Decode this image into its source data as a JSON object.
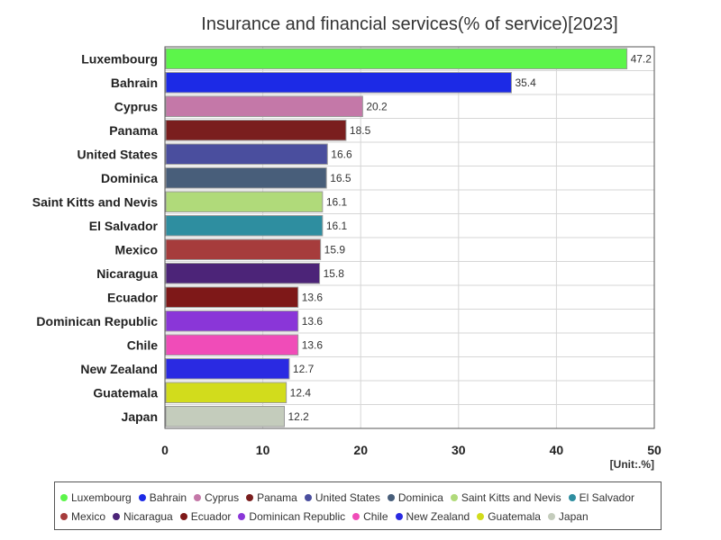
{
  "chart_data": {
    "type": "bar",
    "orientation": "horizontal",
    "title": "Insurance and financial services(% of service)[2023]",
    "unit_label": "[Unit:.%]",
    "xlim": [
      0,
      50
    ],
    "x_ticks": [
      "0",
      "10",
      "20",
      "30",
      "40",
      "50"
    ],
    "grid": true,
    "legend_position": "bottom",
    "categories": [
      "Luxembourg",
      "Bahrain",
      "Cyprus",
      "Panama",
      "United States",
      "Dominica",
      "Saint Kitts and Nevis",
      "El Salvador",
      "Mexico",
      "Nicaragua",
      "Ecuador",
      "Dominican Republic",
      "Chile",
      "New Zealand",
      "Guatemala",
      "Japan"
    ],
    "values": [
      47.2,
      35.4,
      20.2,
      18.5,
      16.6,
      16.5,
      16.1,
      16.1,
      15.9,
      15.8,
      13.6,
      13.6,
      13.6,
      12.7,
      12.4,
      12.2
    ],
    "value_labels": [
      "47.2",
      "35.4",
      "20.2",
      "18.5",
      "16.6",
      "16.5",
      "16.1",
      "16.1",
      "15.9",
      "15.8",
      "13.6",
      "13.6",
      "13.6",
      "12.7",
      "12.4",
      "12.2"
    ],
    "colors": [
      "#5cf54a",
      "#1c2ae6",
      "#c478a8",
      "#7a1e1e",
      "#4a4e9e",
      "#485e7a",
      "#b0da7a",
      "#2e8ea0",
      "#a63c3c",
      "#4c2478",
      "#7e1818",
      "#8a36d8",
      "#f04cb8",
      "#2a2ae2",
      "#d2dc1c",
      "#c4ccbc"
    ],
    "legend_rows": [
      [
        "Luxembourg",
        "Bahrain",
        "Cyprus",
        "Panama",
        "United States",
        "Dominica",
        "Saint Kitts and Nevis",
        "El Salvador"
      ],
      [
        "Mexico",
        "Nicaragua",
        "Ecuador",
        "Dominican Republic",
        "Chile",
        "New Zealand",
        "Guatemala",
        "Japan"
      ]
    ]
  }
}
